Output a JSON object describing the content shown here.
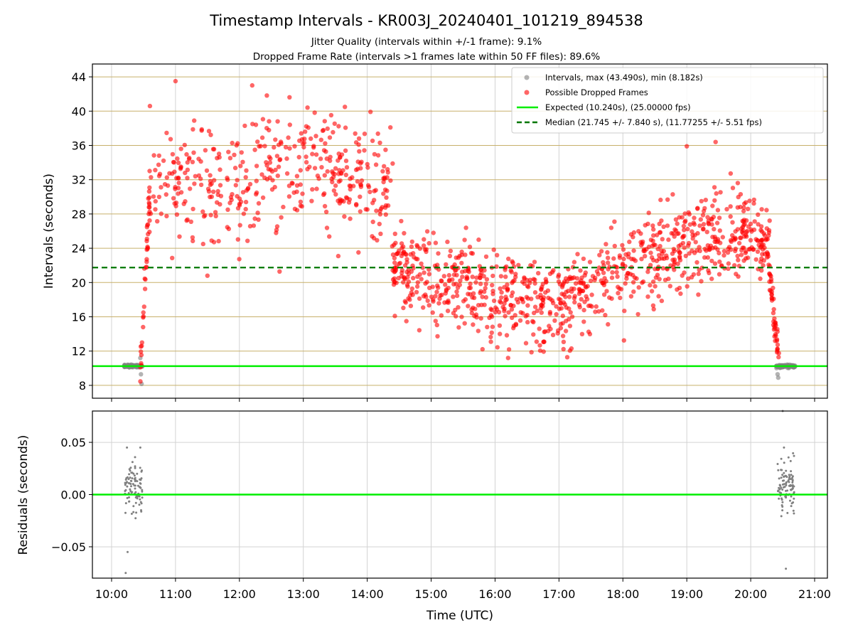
{
  "header": {
    "title": "Timestamp Intervals - KR003J_20240401_101219_894538",
    "subtitle_1": "Jitter Quality (intervals within +/-1 frame): 9.1%",
    "subtitle_2": "Dropped Frame Rate (intervals >1 frames late within 50 FF files): 89.6%"
  },
  "chart_data": [
    {
      "type": "scatter",
      "title": "Timestamp Intervals - KR003J_20240401_101219_894538",
      "ylabel": "Intervals (seconds)",
      "xlabel": "",
      "xlim_hours": [
        9.7,
        21.2
      ],
      "ylim": [
        6.5,
        45.5
      ],
      "yticks": [
        8,
        12,
        16,
        20,
        24,
        28,
        32,
        36,
        40,
        44
      ],
      "ytick_labels": [
        "8",
        "12",
        "16",
        "20",
        "24",
        "28",
        "32",
        "36",
        "40",
        "44"
      ],
      "grid": true,
      "legend_position": "top-right",
      "legend": {
        "intervals": "Intervals, max (43.490s), min (8.182s)",
        "dropped": "Possible Dropped Frames",
        "expected": "Expected (10.240s), (25.00000 fps)",
        "median": "Median (21.745 +/- 7.840 s), (11.77255 +/- 5.51 fps)"
      },
      "expected_value": 10.24,
      "median_value": 21.745,
      "colors": {
        "intervals": "#808080",
        "dropped": "#ff0000",
        "expected": "#00ee00",
        "median": "#007700",
        "grid": "#c8b06a"
      },
      "segments": [
        {
          "series": "intervals",
          "x_range": [
            10.2,
            10.48
          ],
          "count": 90,
          "points_mean": 10.24,
          "spread": 0.08,
          "outliers": [
            [
              10.47,
              8.18
            ],
            [
              10.46,
              9.3
            ],
            [
              10.45,
              11.2
            ]
          ]
        },
        {
          "series": "dropped",
          "x_range": [
            10.45,
            10.6
          ],
          "count": 40,
          "ramp": [
            10.3,
            31.0
          ],
          "spread": 1.2
        },
        {
          "series": "dropped",
          "x_range": [
            10.55,
            14.4
          ],
          "count": 420,
          "curve": [
            [
              10.55,
              30.5
            ],
            [
              11.5,
              32.0
            ],
            [
              12.5,
              33.0
            ],
            [
              13.5,
              32.5
            ],
            [
              14.4,
              31.0
            ]
          ],
          "spread": 3.8
        },
        {
          "series": "dropped",
          "x_range": [
            14.4,
            20.3
          ],
          "count": 950,
          "curve": [
            [
              14.4,
              21.5
            ],
            [
              15.0,
              21.0
            ],
            [
              15.5,
              20.0
            ],
            [
              16.0,
              18.5
            ],
            [
              16.5,
              17.0
            ],
            [
              17.0,
              17.5
            ],
            [
              17.5,
              19.5
            ],
            [
              18.0,
              21.5
            ],
            [
              18.5,
              23.0
            ],
            [
              19.0,
              25.0
            ],
            [
              19.5,
              26.0
            ],
            [
              20.0,
              25.5
            ],
            [
              20.3,
              25.0
            ]
          ],
          "spread": 2.6
        },
        {
          "series": "dropped",
          "x_range": [
            20.28,
            20.45
          ],
          "count": 45,
          "ramp": [
            22.0,
            10.5
          ],
          "spread": 0.9
        },
        {
          "series": "intervals",
          "x_range": [
            20.4,
            20.7
          ],
          "count": 90,
          "points_mean": 10.24,
          "spread": 0.09,
          "outliers": [
            [
              20.43,
              8.9
            ],
            [
              20.42,
              9.3
            ]
          ]
        }
      ],
      "highlighted_points": [
        [
          10.6,
          40.6
        ],
        [
          11.0,
          43.5
        ],
        [
          12.2,
          43.0
        ],
        [
          13.65,
          40.5
        ],
        [
          19.45,
          36.4
        ],
        [
          19.0,
          35.9
        ],
        [
          11.5,
          20.8
        ],
        [
          16.65,
          13.1
        ]
      ]
    },
    {
      "type": "scatter",
      "ylabel": "Residuals (seconds)",
      "xlabel": "Time (UTC)",
      "xlim_hours": [
        9.7,
        21.2
      ],
      "ylim": [
        -0.08,
        0.08
      ],
      "yticks": [
        -0.05,
        0,
        0.05
      ],
      "ytick_labels": [
        "−0.05",
        "0.00",
        "0.05"
      ],
      "xticks_hours": [
        10,
        11,
        12,
        13,
        14,
        15,
        16,
        17,
        18,
        19,
        20,
        21
      ],
      "xtick_labels": [
        "10:00",
        "11:00",
        "12:00",
        "13:00",
        "14:00",
        "15:00",
        "16:00",
        "17:00",
        "18:00",
        "19:00",
        "20:00",
        "21:00"
      ],
      "grid": true,
      "zero_line_color": "#00ee00",
      "point_color": "#808080",
      "segments": [
        {
          "x_range": [
            10.2,
            10.48
          ],
          "count": 95,
          "mean": 0.008,
          "spread": 0.02,
          "outliers": [
            [
              10.22,
              -0.075
            ],
            [
              10.25,
              -0.055
            ],
            [
              10.24,
              0.045
            ],
            [
              10.45,
              0.045
            ]
          ]
        },
        {
          "x_range": [
            20.42,
            20.68
          ],
          "count": 95,
          "mean": 0.008,
          "spread": 0.02,
          "outliers": [
            [
              20.55,
              -0.071
            ],
            [
              20.52,
              0.045
            ],
            [
              20.5,
              0.08
            ]
          ]
        }
      ]
    }
  ]
}
